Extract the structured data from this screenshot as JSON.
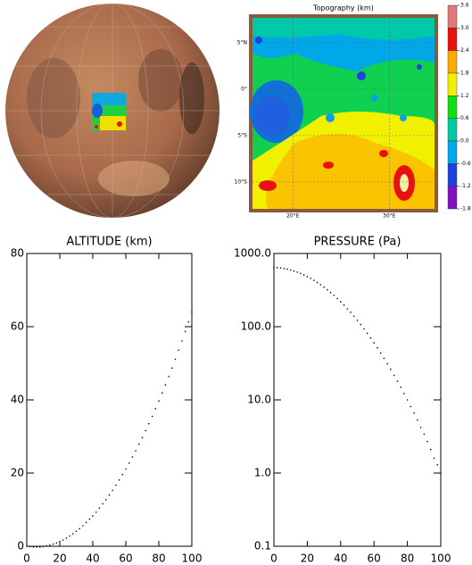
{
  "chart_data": [
    {
      "type": "map",
      "title": "Topography (km)",
      "xlim": [
        15.8,
        34.7
      ],
      "ylim": [
        -12.9,
        7.7
      ],
      "xticks": [
        {
          "value": 20,
          "label": "20°E"
        },
        {
          "value": 30,
          "label": "30°E"
        }
      ],
      "yticks": [
        {
          "value": 5,
          "label": "5°N"
        },
        {
          "value": 0,
          "label": "0°"
        },
        {
          "value": -5,
          "label": "5°S"
        },
        {
          "value": -10,
          "label": "10°S"
        }
      ],
      "clim": [
        -1.8,
        3.6
      ],
      "cticks": [
        3.6,
        {
          "value": 3,
          "label": "3.0"
        },
        2.4,
        1.8,
        1.2,
        0.6,
        {
          "value": 0,
          "label": "0.0"
        },
        -0.6,
        -1.2,
        -1.8
      ],
      "colors": [
        "#e07878",
        "#e81010",
        "#ffa800",
        "#f0f000",
        "#10e010",
        "#00c8a0",
        "#00a8f0",
        "#2040e0",
        "#8010c0"
      ]
    },
    {
      "type": "line",
      "title": "ALTITUDE (km)",
      "color": "#000000",
      "x": [
        0,
        2,
        4,
        6,
        8,
        10,
        12,
        14,
        16,
        18,
        20,
        22,
        24,
        26,
        28,
        30,
        32,
        34,
        36,
        38,
        40,
        42,
        44,
        46,
        48,
        50,
        52,
        54,
        56,
        58,
        60,
        62,
        64,
        66,
        68,
        70,
        72,
        74,
        76,
        78,
        80,
        82,
        84,
        86,
        88,
        90,
        92,
        94,
        96,
        98,
        100
      ],
      "values": [
        0,
        -0.1,
        -0.2,
        -0.2,
        -0.2,
        -0.1,
        0.1,
        0.3,
        0.6,
        0.9,
        1.3,
        1.7,
        2.2,
        2.8,
        3.4,
        4.1,
        4.8,
        5.6,
        6.5,
        7.4,
        8.3,
        9.3,
        10.4,
        11.6,
        12.7,
        14.0,
        15.3,
        16.7,
        18.1,
        19.6,
        21.1,
        22.7,
        24.4,
        26.1,
        27.9,
        29.7,
        31.6,
        33.5,
        35.5,
        37.6,
        39.7,
        41.9,
        44.1,
        46.4,
        48.7,
        51.1,
        53.6,
        56.1,
        58.7,
        61.3,
        64.0
      ],
      "xlim": [
        0,
        100
      ],
      "ylim": [
        0,
        80
      ],
      "xticks": [
        0,
        20,
        40,
        60,
        80,
        100
      ],
      "yticks": [
        0,
        20,
        40,
        60,
        80
      ]
    },
    {
      "type": "line",
      "title": "PRESSURE (Pa)",
      "color": "#000000",
      "ylog": true,
      "x": [
        0,
        2,
        4,
        6,
        8,
        10,
        12,
        14,
        16,
        18,
        20,
        22,
        24,
        26,
        28,
        30,
        32,
        34,
        36,
        38,
        40,
        42,
        44,
        46,
        48,
        50,
        52,
        54,
        56,
        58,
        60,
        62,
        64,
        66,
        68,
        70,
        72,
        74,
        76,
        78,
        80,
        82,
        84,
        86,
        88,
        90,
        92,
        94,
        96,
        98,
        100
      ],
      "values": [
        646,
        642,
        635,
        624,
        611,
        595,
        577,
        556,
        534,
        510,
        484,
        458,
        430,
        402,
        375,
        347,
        320,
        293,
        268,
        243,
        219,
        197,
        176,
        157,
        139,
        122,
        107,
        93.5,
        81.1,
        70.0,
        60.2,
        51.4,
        43.7,
        37.0,
        31.1,
        26.1,
        21.7,
        18.0,
        14.9,
        12.2,
        10.0,
        8.1,
        6.6,
        5.3,
        4.2,
        3.4,
        2.7,
        2.1,
        1.6,
        1.3,
        1.0
      ],
      "xlim": [
        0,
        100
      ],
      "ylim": [
        0.1,
        1000
      ],
      "xticks": [
        0,
        20,
        40,
        60,
        80,
        100
      ],
      "yticks": [
        {
          "value": 1000,
          "label": "1000.0"
        },
        {
          "value": 100,
          "label": "100.0"
        },
        {
          "value": 10,
          "label": "10.0"
        },
        {
          "value": 1,
          "label": "1.0"
        },
        0.1
      ]
    }
  ]
}
